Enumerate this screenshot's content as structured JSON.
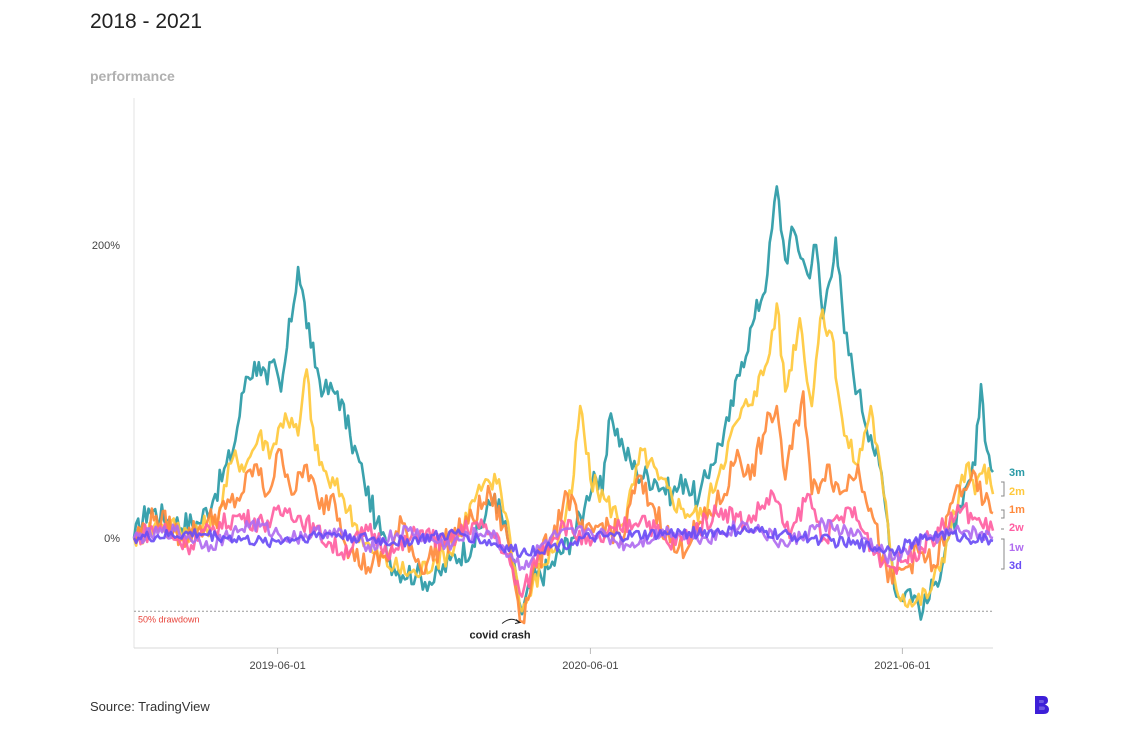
{
  "header": {
    "title": "2018 - 2021",
    "subtitle": "performance"
  },
  "footer": {
    "source": "Source: TradingView",
    "logo_icon": "brand-b-logo-icon"
  },
  "colors": {
    "3m": "#2a9aa6",
    "2m": "#ffc93c",
    "1m": "#ff8a3c",
    "2w": "#ff5fa2",
    "1w": "#b06cf0",
    "3d": "#6a4df5",
    "drawdown": "#e8453c",
    "logo": "#3d1fd8"
  },
  "chart_data": {
    "type": "line",
    "x_range": [
      "2018-12-15",
      "2021-09-15"
    ],
    "ylim": [
      -0.37,
      2.8
    ],
    "y_ticks": [
      {
        "value": 0,
        "label": "0%"
      },
      {
        "value": 2,
        "label": "200%"
      }
    ],
    "x_ticks": [
      {
        "date": "2019-06-01",
        "label": "2019-06-01"
      },
      {
        "date": "2020-06-01",
        "label": "2020-06-01"
      },
      {
        "date": "2021-06-01",
        "label": "2021-06-01"
      }
    ],
    "reference_line": {
      "value": -0.5,
      "label": "50% drawdown"
    },
    "annotations": [
      {
        "date": "2020-03-13",
        "value": -0.57,
        "label": "covid crash"
      }
    ],
    "series": [
      {
        "name": "3m",
        "color": "#2a9aa6",
        "points": [
          [
            "2018-12-15",
            0.0
          ],
          [
            "2019-01-01",
            0.2
          ],
          [
            "2019-02-01",
            0.1
          ],
          [
            "2019-03-01",
            0.1
          ],
          [
            "2019-03-20",
            0.3
          ],
          [
            "2019-04-10",
            0.6
          ],
          [
            "2019-04-25",
            1.1
          ],
          [
            "2019-05-10",
            1.2
          ],
          [
            "2019-05-20",
            1.05
          ],
          [
            "2019-05-25",
            1.2
          ],
          [
            "2019-06-05",
            1.0
          ],
          [
            "2019-06-12",
            1.3
          ],
          [
            "2019-06-25",
            1.85
          ],
          [
            "2019-07-10",
            1.3
          ],
          [
            "2019-07-25",
            1.0
          ],
          [
            "2019-08-10",
            1.0
          ],
          [
            "2019-08-25",
            0.7
          ],
          [
            "2019-09-10",
            0.4
          ],
          [
            "2019-09-25",
            0.1
          ],
          [
            "2019-10-15",
            -0.2
          ],
          [
            "2019-11-10",
            -0.25
          ],
          [
            "2019-12-01",
            -0.3
          ],
          [
            "2019-12-20",
            -0.15
          ],
          [
            "2020-01-15",
            -0.05
          ],
          [
            "2020-02-10",
            0.3
          ],
          [
            "2020-02-25",
            0.0
          ],
          [
            "2020-03-13",
            -0.52
          ],
          [
            "2020-03-25",
            -0.3
          ],
          [
            "2020-04-15",
            -0.2
          ],
          [
            "2020-05-10",
            0.0
          ],
          [
            "2020-05-25",
            0.2
          ],
          [
            "2020-06-05",
            0.45
          ],
          [
            "2020-06-15",
            0.3
          ],
          [
            "2020-06-25",
            0.85
          ],
          [
            "2020-07-10",
            0.6
          ],
          [
            "2020-07-25",
            0.45
          ],
          [
            "2020-08-15",
            0.4
          ],
          [
            "2020-09-05",
            0.3
          ],
          [
            "2020-09-20",
            0.4
          ],
          [
            "2020-10-05",
            0.25
          ],
          [
            "2020-10-20",
            0.5
          ],
          [
            "2020-11-10",
            0.8
          ],
          [
            "2020-11-25",
            1.2
          ],
          [
            "2020-12-10",
            1.5
          ],
          [
            "2020-12-25",
            1.8
          ],
          [
            "2021-01-05",
            2.4
          ],
          [
            "2021-01-15",
            1.9
          ],
          [
            "2021-01-25",
            2.1
          ],
          [
            "2021-02-10",
            1.8
          ],
          [
            "2021-02-20",
            2.0
          ],
          [
            "2021-02-28",
            1.5
          ],
          [
            "2021-03-15",
            2.05
          ],
          [
            "2021-03-25",
            1.4
          ],
          [
            "2021-04-10",
            1.0
          ],
          [
            "2021-04-25",
            0.7
          ],
          [
            "2021-05-05",
            0.5
          ],
          [
            "2021-05-15",
            0.1
          ],
          [
            "2021-05-25",
            -0.4
          ],
          [
            "2021-06-10",
            -0.35
          ],
          [
            "2021-06-25",
            -0.5
          ],
          [
            "2021-07-10",
            -0.3
          ],
          [
            "2021-07-25",
            0.0
          ],
          [
            "2021-08-10",
            0.2
          ],
          [
            "2021-08-25",
            0.5
          ],
          [
            "2021-09-01",
            1.05
          ],
          [
            "2021-09-08",
            0.6
          ],
          [
            "2021-09-15",
            0.45
          ]
        ]
      },
      {
        "name": "2m",
        "color": "#ffc93c",
        "points": [
          [
            "2018-12-15",
            0.0
          ],
          [
            "2019-01-15",
            0.1
          ],
          [
            "2019-02-20",
            0.05
          ],
          [
            "2019-03-20",
            0.1
          ],
          [
            "2019-04-10",
            0.55
          ],
          [
            "2019-04-25",
            0.5
          ],
          [
            "2019-05-10",
            0.7
          ],
          [
            "2019-05-25",
            0.6
          ],
          [
            "2019-06-10",
            0.85
          ],
          [
            "2019-06-25",
            0.7
          ],
          [
            "2019-07-05",
            1.15
          ],
          [
            "2019-07-15",
            0.6
          ],
          [
            "2019-07-30",
            0.4
          ],
          [
            "2019-08-15",
            0.3
          ],
          [
            "2019-08-30",
            0.1
          ],
          [
            "2019-09-20",
            -0.1
          ],
          [
            "2019-10-15",
            -0.2
          ],
          [
            "2019-11-10",
            -0.25
          ],
          [
            "2019-12-01",
            -0.15
          ],
          [
            "2019-12-20",
            -0.1
          ],
          [
            "2020-01-20",
            0.3
          ],
          [
            "2020-02-15",
            0.4
          ],
          [
            "2020-02-28",
            0.0
          ],
          [
            "2020-03-13",
            -0.5
          ],
          [
            "2020-04-05",
            -0.2
          ],
          [
            "2020-04-25",
            0.0
          ],
          [
            "2020-05-10",
            0.3
          ],
          [
            "2020-05-20",
            0.9
          ],
          [
            "2020-06-01",
            0.4
          ],
          [
            "2020-06-20",
            0.25
          ],
          [
            "2020-07-10",
            0.1
          ],
          [
            "2020-08-01",
            0.6
          ],
          [
            "2020-08-20",
            0.4
          ],
          [
            "2020-09-15",
            0.2
          ],
          [
            "2020-10-10",
            0.15
          ],
          [
            "2020-11-01",
            0.5
          ],
          [
            "2020-11-20",
            0.8
          ],
          [
            "2020-12-10",
            1.0
          ],
          [
            "2020-12-25",
            1.2
          ],
          [
            "2021-01-05",
            1.6
          ],
          [
            "2021-01-15",
            1.0
          ],
          [
            "2021-02-01",
            1.5
          ],
          [
            "2021-02-15",
            0.9
          ],
          [
            "2021-02-25",
            1.5
          ],
          [
            "2021-03-10",
            1.4
          ],
          [
            "2021-03-25",
            0.7
          ],
          [
            "2021-04-10",
            0.5
          ],
          [
            "2021-04-25",
            0.9
          ],
          [
            "2021-05-10",
            0.3
          ],
          [
            "2021-05-25",
            -0.35
          ],
          [
            "2021-06-15",
            -0.45
          ],
          [
            "2021-07-05",
            -0.35
          ],
          [
            "2021-07-25",
            0.0
          ],
          [
            "2021-08-15",
            0.5
          ],
          [
            "2021-08-25",
            0.3
          ],
          [
            "2021-09-05",
            0.5
          ],
          [
            "2021-09-15",
            0.3
          ]
        ]
      },
      {
        "name": "1m",
        "color": "#ff8a3c",
        "points": [
          [
            "2018-12-15",
            0.0
          ],
          [
            "2019-01-10",
            0.15
          ],
          [
            "2019-02-10",
            0.0
          ],
          [
            "2019-03-10",
            0.1
          ],
          [
            "2019-04-01",
            0.2
          ],
          [
            "2019-04-20",
            0.3
          ],
          [
            "2019-05-05",
            0.5
          ],
          [
            "2019-05-20",
            0.3
          ],
          [
            "2019-06-05",
            0.6
          ],
          [
            "2019-06-20",
            0.3
          ],
          [
            "2019-07-05",
            0.5
          ],
          [
            "2019-07-20",
            0.2
          ],
          [
            "2019-08-05",
            0.3
          ],
          [
            "2019-08-25",
            -0.1
          ],
          [
            "2019-09-15",
            -0.2
          ],
          [
            "2019-10-10",
            -0.1
          ],
          [
            "2019-10-25",
            0.1
          ],
          [
            "2019-11-15",
            -0.2
          ],
          [
            "2019-12-10",
            -0.05
          ],
          [
            "2020-01-10",
            0.1
          ],
          [
            "2020-02-05",
            0.3
          ],
          [
            "2020-02-25",
            0.0
          ],
          [
            "2020-03-13",
            -0.57
          ],
          [
            "2020-03-25",
            -0.25
          ],
          [
            "2020-04-15",
            0.0
          ],
          [
            "2020-05-05",
            0.3
          ],
          [
            "2020-05-25",
            0.0
          ],
          [
            "2020-06-15",
            0.1
          ],
          [
            "2020-07-10",
            0.0
          ],
          [
            "2020-07-25",
            0.4
          ],
          [
            "2020-08-15",
            0.2
          ],
          [
            "2020-09-10",
            -0.1
          ],
          [
            "2020-10-10",
            0.1
          ],
          [
            "2020-11-05",
            0.3
          ],
          [
            "2020-11-20",
            0.6
          ],
          [
            "2020-12-05",
            0.4
          ],
          [
            "2020-12-20",
            0.7
          ],
          [
            "2021-01-05",
            0.9
          ],
          [
            "2021-01-15",
            0.4
          ],
          [
            "2021-02-05",
            1.0
          ],
          [
            "2021-02-15",
            0.3
          ],
          [
            "2021-03-05",
            0.5
          ],
          [
            "2021-03-20",
            0.3
          ],
          [
            "2021-04-10",
            0.5
          ],
          [
            "2021-04-25",
            0.2
          ],
          [
            "2021-05-15",
            -0.3
          ],
          [
            "2021-06-05",
            -0.2
          ],
          [
            "2021-06-20",
            -0.1
          ],
          [
            "2021-07-10",
            -0.2
          ],
          [
            "2021-08-01",
            0.3
          ],
          [
            "2021-08-20",
            0.4
          ],
          [
            "2021-09-05",
            0.25
          ],
          [
            "2021-09-15",
            0.17
          ]
        ]
      },
      {
        "name": "2w",
        "color": "#ff5fa2",
        "points": [
          [
            "2018-12-15",
            0.0
          ],
          [
            "2019-01-15",
            0.08
          ],
          [
            "2019-02-15",
            -0.05
          ],
          [
            "2019-03-15",
            0.05
          ],
          [
            "2019-04-15",
            0.15
          ],
          [
            "2019-05-15",
            0.1
          ],
          [
            "2019-06-15",
            0.2
          ],
          [
            "2019-07-15",
            0.05
          ],
          [
            "2019-08-15",
            -0.1
          ],
          [
            "2019-09-15",
            0.05
          ],
          [
            "2019-10-15",
            -0.1
          ],
          [
            "2019-11-15",
            0.05
          ],
          [
            "2019-12-15",
            -0.05
          ],
          [
            "2020-01-15",
            0.1
          ],
          [
            "2020-02-15",
            0.0
          ],
          [
            "2020-03-13",
            -0.4
          ],
          [
            "2020-04-01",
            -0.1
          ],
          [
            "2020-05-01",
            0.1
          ],
          [
            "2020-06-01",
            -0.05
          ],
          [
            "2020-07-01",
            0.05
          ],
          [
            "2020-08-01",
            0.15
          ],
          [
            "2020-09-01",
            -0.05
          ],
          [
            "2020-10-01",
            0.05
          ],
          [
            "2020-11-01",
            0.2
          ],
          [
            "2020-12-01",
            0.1
          ],
          [
            "2021-01-01",
            0.3
          ],
          [
            "2021-01-20",
            0.0
          ],
          [
            "2021-02-10",
            0.3
          ],
          [
            "2021-03-01",
            0.0
          ],
          [
            "2021-04-01",
            0.2
          ],
          [
            "2021-05-01",
            -0.1
          ],
          [
            "2021-05-20",
            -0.2
          ],
          [
            "2021-06-15",
            -0.1
          ],
          [
            "2021-07-15",
            0.05
          ],
          [
            "2021-08-10",
            0.2
          ],
          [
            "2021-09-01",
            0.1
          ],
          [
            "2021-09-15",
            0.05
          ]
        ]
      },
      {
        "name": "1w",
        "color": "#b06cf0",
        "points": [
          [
            "2018-12-15",
            0.0
          ],
          [
            "2019-02-01",
            0.05
          ],
          [
            "2019-03-15",
            -0.05
          ],
          [
            "2019-05-01",
            0.1
          ],
          [
            "2019-06-15",
            0.0
          ],
          [
            "2019-08-01",
            0.05
          ],
          [
            "2019-09-15",
            -0.05
          ],
          [
            "2019-11-01",
            0.05
          ],
          [
            "2019-12-15",
            -0.05
          ],
          [
            "2020-02-01",
            0.05
          ],
          [
            "2020-03-13",
            -0.2
          ],
          [
            "2020-04-15",
            0.0
          ],
          [
            "2020-06-01",
            0.05
          ],
          [
            "2020-07-15",
            -0.05
          ],
          [
            "2020-09-01",
            0.05
          ],
          [
            "2020-10-15",
            0.0
          ],
          [
            "2020-12-01",
            0.1
          ],
          [
            "2021-01-15",
            -0.05
          ],
          [
            "2021-03-01",
            0.1
          ],
          [
            "2021-04-15",
            0.0
          ],
          [
            "2021-05-20",
            -0.15
          ],
          [
            "2021-07-01",
            0.0
          ],
          [
            "2021-08-15",
            0.05
          ],
          [
            "2021-09-15",
            0.0
          ]
        ]
      },
      {
        "name": "3d",
        "color": "#6a4df5",
        "points": [
          [
            "2018-12-15",
            0.0
          ],
          [
            "2019-03-01",
            0.03
          ],
          [
            "2019-05-15",
            -0.03
          ],
          [
            "2019-08-01",
            0.03
          ],
          [
            "2019-10-15",
            -0.03
          ],
          [
            "2020-01-01",
            0.03
          ],
          [
            "2020-03-13",
            -0.1
          ],
          [
            "2020-06-01",
            0.0
          ],
          [
            "2020-09-01",
            0.03
          ],
          [
            "2020-12-01",
            0.05
          ],
          [
            "2021-02-15",
            0.0
          ],
          [
            "2021-05-20",
            -0.08
          ],
          [
            "2021-07-15",
            0.03
          ],
          [
            "2021-09-15",
            -0.02
          ]
        ]
      }
    ]
  }
}
